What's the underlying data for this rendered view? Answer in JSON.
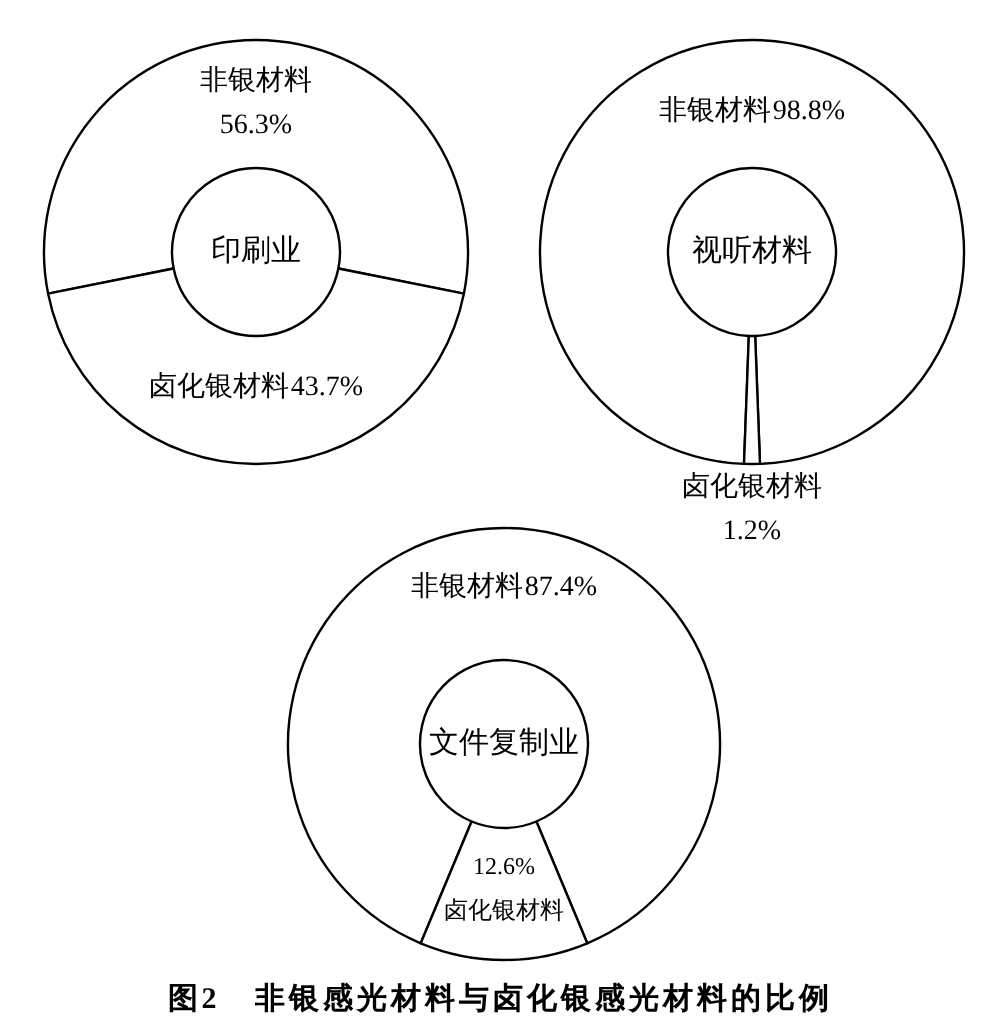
{
  "chart_data": [
    {
      "type": "donut",
      "title": "印刷业",
      "categories": [
        "非银材料",
        "卤化银材料"
      ],
      "values": [
        56.3,
        43.7
      ],
      "colors": [
        "#ffffff",
        "#ffffff"
      ],
      "value_labels": [
        "56.3%",
        "43.7%"
      ]
    },
    {
      "type": "donut",
      "title": "视听材料",
      "categories": [
        "非银材料",
        "卤化银材料"
      ],
      "values": [
        98.8,
        1.2
      ],
      "colors": [
        "#ffffff",
        "#ffffff"
      ],
      "value_labels": [
        "98.8%",
        "1.2%"
      ]
    },
    {
      "type": "donut",
      "title": "文件复制业",
      "categories": [
        "非银材料",
        "卤化银材料"
      ],
      "values": [
        87.4,
        12.6
      ],
      "colors": [
        "#ffffff",
        "#ffffff"
      ],
      "value_labels": [
        "87.4%",
        "12.6%"
      ],
      "annotations": [
        "图2　非银感光材料与卤化银感光材料的比例"
      ]
    }
  ]
}
